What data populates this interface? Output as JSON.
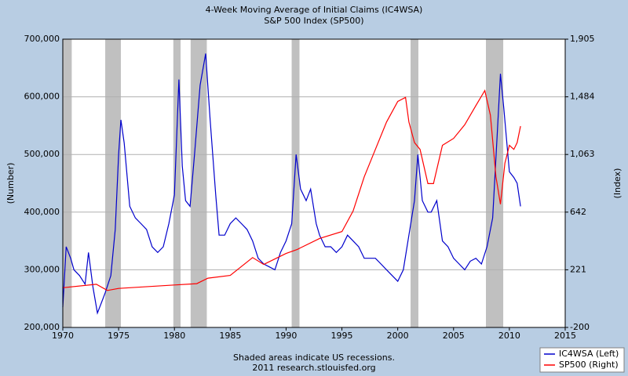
{
  "chart_data": {
    "type": "line",
    "title": "4-Week Moving Average of Initial Claims (IC4WSA)",
    "subtitle": "S&P 500 Index (SP500)",
    "y_label": "(Number)",
    "y2_label": "(Index)",
    "note": "Shaded areas indicate US recessions.",
    "source": "2011 research.stlouisfed.org",
    "xlim": [
      1970,
      2015
    ],
    "xticks": [
      1970,
      1975,
      1980,
      1985,
      1990,
      1995,
      2000,
      2005,
      2010,
      2015
    ],
    "ylim": [
      200000,
      700000
    ],
    "yticks": [
      {
        "value": 200000,
        "label": "200,000"
      },
      {
        "value": 300000,
        "label": "300,000"
      },
      {
        "value": 400000,
        "label": "400,000"
      },
      {
        "value": 500000,
        "label": "500,000"
      },
      {
        "value": 600000,
        "label": "600,000"
      },
      {
        "value": 700000,
        "label": "700,000"
      }
    ],
    "y2lim": [
      -200,
      1905
    ],
    "y2ticks": [
      -200,
      221,
      642,
      {
        "value": 1063,
        "label": "1,063"
      },
      {
        "value": 1484,
        "label": "1,484"
      },
      {
        "value": 1905,
        "label": "1,905"
      }
    ],
    "grid": true,
    "recessions": [
      [
        1970.0,
        1970.8
      ],
      [
        1973.8,
        1975.2
      ],
      [
        1979.9,
        1980.55
      ],
      [
        1981.45,
        1982.9
      ],
      [
        1990.5,
        1991.2
      ],
      [
        2001.15,
        2001.85
      ],
      [
        2007.9,
        2009.45
      ]
    ],
    "recession_color": "#c0c0c0",
    "series": [
      {
        "name": "IC4WSA (Left)",
        "color": "#0000cc",
        "axis": "y",
        "x": [
          1970.0,
          1970.3,
          1970.7,
          1971.0,
          1971.5,
          1972.0,
          1972.3,
          1972.7,
          1973.1,
          1973.5,
          1973.8,
          1974.3,
          1974.7,
          1975.0,
          1975.2,
          1975.5,
          1976.0,
          1976.5,
          1977.0,
          1977.5,
          1978.0,
          1978.5,
          1979.0,
          1979.5,
          1980.0,
          1980.4,
          1980.7,
          1981.0,
          1981.4,
          1981.8,
          1982.3,
          1982.8,
          1983.2,
          1983.7,
          1984.0,
          1984.5,
          1985.0,
          1985.5,
          1986.0,
          1986.5,
          1987.0,
          1987.5,
          1988.0,
          1988.5,
          1989.0,
          1989.5,
          1990.0,
          1990.5,
          1990.9,
          1991.3,
          1991.8,
          1992.2,
          1992.7,
          1993.0,
          1993.5,
          1994.0,
          1994.5,
          1995.0,
          1995.5,
          1996.0,
          1996.5,
          1997.0,
          1997.5,
          1998.0,
          1998.5,
          1999.0,
          1999.5,
          2000.0,
          2000.5,
          2001.0,
          2001.5,
          2001.8,
          2002.2,
          2002.7,
          2003.0,
          2003.5,
          2004.0,
          2004.5,
          2005.0,
          2005.5,
          2006.0,
          2006.5,
          2007.0,
          2007.5,
          2008.0,
          2008.5,
          2008.9,
          2009.2,
          2009.5,
          2010.0,
          2010.4,
          2010.7,
          2011.0
        ],
        "values": [
          235000,
          340000,
          320000,
          300000,
          290000,
          275000,
          330000,
          270000,
          225000,
          245000,
          260000,
          290000,
          370000,
          500000,
          560000,
          520000,
          410000,
          390000,
          380000,
          370000,
          340000,
          330000,
          340000,
          380000,
          430000,
          630000,
          480000,
          420000,
          410000,
          500000,
          620000,
          675000,
          560000,
          430000,
          360000,
          360000,
          380000,
          390000,
          380000,
          370000,
          350000,
          320000,
          310000,
          305000,
          300000,
          330000,
          350000,
          380000,
          500000,
          440000,
          420000,
          440000,
          380000,
          360000,
          340000,
          340000,
          330000,
          340000,
          360000,
          350000,
          340000,
          320000,
          320000,
          320000,
          310000,
          300000,
          290000,
          280000,
          300000,
          360000,
          420000,
          500000,
          420000,
          400000,
          400000,
          420000,
          350000,
          340000,
          320000,
          310000,
          300000,
          315000,
          320000,
          310000,
          340000,
          390000,
          530000,
          640000,
          580000,
          470000,
          460000,
          450000,
          410000
        ]
      },
      {
        "name": "SP500 (Right)",
        "color": "#ff0000",
        "axis": "y2",
        "x": [
          1970.0,
          1973.0,
          1974.0,
          1975.0,
          1980.0,
          1982.0,
          1983.0,
          1985.0,
          1987.0,
          1988.0,
          1990.0,
          1991.0,
          1993.0,
          1995.0,
          1996.0,
          1997.0,
          1998.0,
          1999.0,
          2000.0,
          2000.7,
          2001.0,
          2001.5,
          2002.0,
          2002.7,
          2003.2,
          2004.0,
          2005.0,
          2006.0,
          2007.0,
          2007.8,
          2008.3,
          2008.8,
          2009.2,
          2009.6,
          2010.0,
          2010.4,
          2010.7,
          2011.0
        ],
        "values": [
          90,
          115,
          70,
          85,
          110,
          120,
          160,
          180,
          310,
          260,
          340,
          370,
          450,
          500,
          650,
          900,
          1100,
          1300,
          1450,
          1480,
          1300,
          1150,
          1100,
          850,
          850,
          1130,
          1180,
          1280,
          1420,
          1530,
          1350,
          900,
          700,
          1000,
          1130,
          1100,
          1150,
          1270
        ]
      }
    ]
  }
}
